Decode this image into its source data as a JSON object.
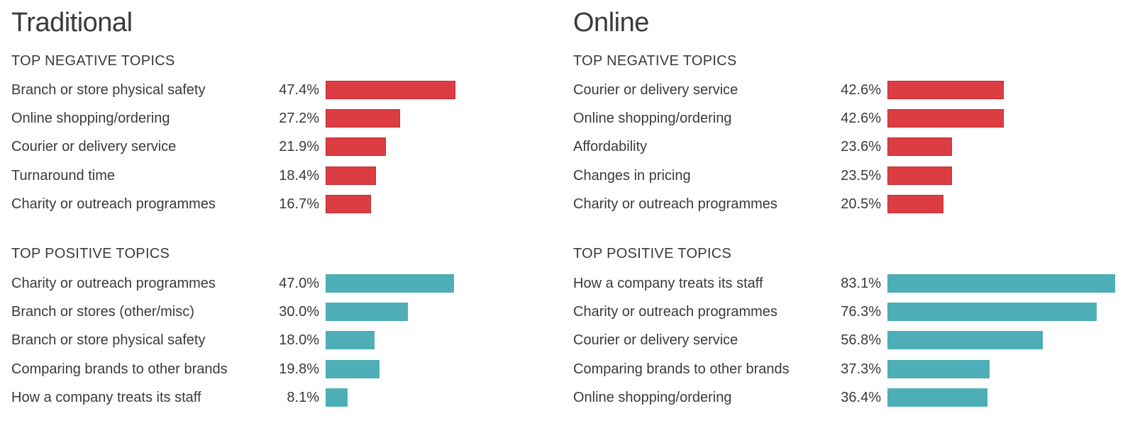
{
  "colors": {
    "negative": "#dc3d43",
    "positive": "#4daeb8",
    "text": "#3a3a3a"
  },
  "chart_data": [
    {
      "type": "bar",
      "orientation": "horizontal",
      "title": "Traditional",
      "sections": [
        {
          "heading": "TOP NEGATIVE TOPICS",
          "color": "#dc3d43",
          "categories": [
            "Branch or store physical safety",
            "Online shopping/ordering",
            "Courier or delivery service",
            "Turnaround time",
            "Charity or outreach programmes"
          ],
          "values": [
            47.4,
            27.2,
            21.9,
            18.4,
            16.7
          ],
          "value_labels": [
            "47.4%",
            "27.2%",
            "21.9%",
            "18.4%",
            "16.7%"
          ]
        },
        {
          "heading": "TOP POSITIVE TOPICS",
          "color": "#4daeb8",
          "categories": [
            "Charity or outreach programmes",
            "Branch or stores (other/misc)",
            "Branch or store physical safety",
            "Comparing brands to other brands",
            "How a company treats its staff"
          ],
          "values": [
            47.0,
            30.0,
            18.0,
            19.8,
            8.1
          ],
          "value_labels": [
            "47.0%",
            "30.0%",
            "18.0%",
            "19.8%",
            "8.1%"
          ]
        }
      ]
    },
    {
      "type": "bar",
      "orientation": "horizontal",
      "title": "Online",
      "sections": [
        {
          "heading": "TOP NEGATIVE TOPICS",
          "color": "#dc3d43",
          "categories": [
            "Courier or delivery service",
            "Online shopping/ordering",
            "Affordability",
            "Changes in pricing",
            "Charity or outreach programmes"
          ],
          "values": [
            42.6,
            42.6,
            23.6,
            23.5,
            20.5
          ],
          "value_labels": [
            "42.6%",
            "42.6%",
            "23.6%",
            "23.5%",
            "20.5%"
          ]
        },
        {
          "heading": "TOP POSITIVE TOPICS",
          "color": "#4daeb8",
          "categories": [
            "How a company treats its staff",
            "Charity or outreach programmes",
            "Courier or delivery service",
            "Comparing brands to other brands",
            "Online shopping/ordering"
          ],
          "values": [
            83.1,
            76.3,
            56.8,
            37.3,
            36.4
          ],
          "value_labels": [
            "83.1%",
            "76.3%",
            "56.8%",
            "37.3%",
            "36.4%"
          ]
        }
      ]
    }
  ]
}
